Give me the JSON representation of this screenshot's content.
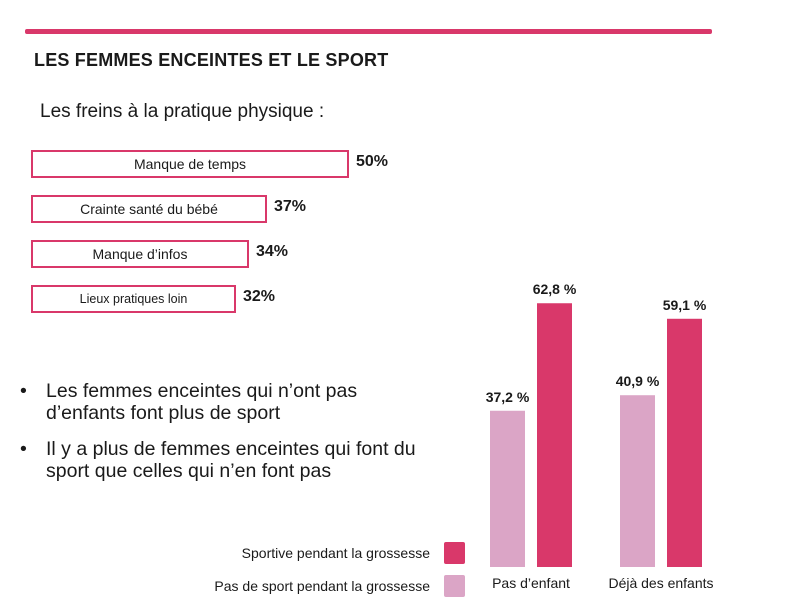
{
  "heading": "LES FEMMES ENCEINTES ET LE SPORT",
  "subheading": "Les freins à la pratique physique :",
  "freins": [
    {
      "label": "Manque de temps",
      "value": 50,
      "display": "50%"
    },
    {
      "label": "Crainte santé du bébé",
      "value": 37,
      "display": "37%"
    },
    {
      "label": "Manque d’infos",
      "value": 34,
      "display": "34%"
    },
    {
      "label": "Lieux pratiques loin",
      "value": 32,
      "display": "32%"
    }
  ],
  "bullets": [
    "Les femmes enceintes qui n’ont pas d’enfants font plus de sport",
    "Il y a plus de femmes enceintes qui font du sport que celles qui n’en font pas"
  ],
  "colors": {
    "accent": "#d9386a",
    "light": "#dba5c6"
  },
  "chart_data": {
    "type": "bar",
    "categories": [
      "Pas d’enfant",
      "Déjà des enfants"
    ],
    "series": [
      {
        "name": "Pas de sport pendant la grossesse",
        "values": [
          37.2,
          40.9
        ],
        "labels": [
          "37,2 %",
          "40,9 %"
        ],
        "color": "#dba5c6"
      },
      {
        "name": "Sportive pendant la grossesse",
        "values": [
          62.8,
          59.1
        ],
        "labels": [
          "62,8 %",
          "59,1 %"
        ],
        "color": "#d9386a"
      }
    ],
    "legend_order": [
      "Sportive pendant la grossesse",
      "Pas de sport pendant la grossesse"
    ],
    "legend_position": "left"
  }
}
